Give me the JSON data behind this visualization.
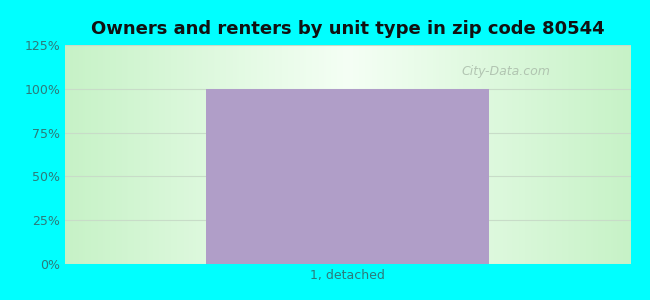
{
  "title": "Owners and renters by unit type in zip code 80544",
  "categories": [
    "1, detached"
  ],
  "values": [
    100
  ],
  "bar_color": "#b09ec8",
  "bar_width": 0.5,
  "ylim": [
    0,
    125
  ],
  "yticks": [
    0,
    25,
    50,
    75,
    100,
    125
  ],
  "ytick_labels": [
    "0%",
    "25%",
    "50%",
    "75%",
    "100%",
    "125%"
  ],
  "title_fontsize": 13,
  "tick_label_color": "#2d7a7a",
  "outer_bg_color": "#00ffff",
  "grid_color": "#c8dcc8",
  "watermark_text": "City-Data.com",
  "watermark_color": "#aabcaa",
  "fig_width": 6.5,
  "fig_height": 3.0,
  "dpi": 100
}
